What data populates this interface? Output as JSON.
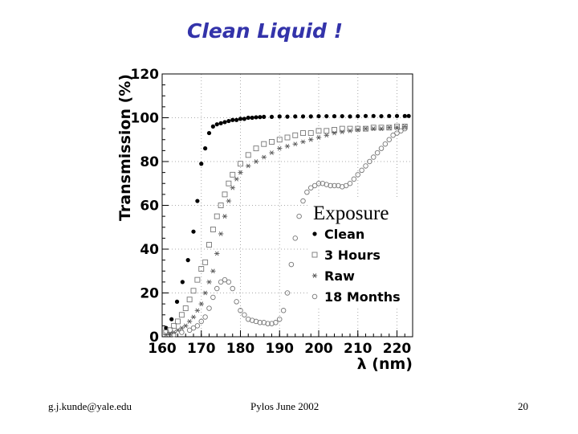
{
  "slide": {
    "title": "Clean Liquid !",
    "footer_left": "g.j.kunde@yale.edu",
    "footer_center": "Pylos June 2002",
    "footer_right": "20"
  },
  "chart_data": {
    "type": "scatter",
    "title": "",
    "xlabel": "λ (nm)",
    "ylabel": "Transmission (%)",
    "xlim": [
      160,
      224
    ],
    "ylim": [
      0,
      120
    ],
    "xticks": [
      160,
      170,
      180,
      190,
      200,
      210,
      220
    ],
    "yticks": [
      0,
      20,
      40,
      60,
      80,
      100,
      120
    ],
    "grid": "dotted",
    "legend_title": "Exposure",
    "legend_position": "right-middle",
    "series": [
      {
        "name": "Clean",
        "marker": "filled-circle",
        "x": [
          161,
          162.4,
          163.8,
          165.2,
          166.6,
          168,
          169,
          170,
          171,
          172,
          173,
          174,
          175,
          176,
          177,
          178,
          179,
          180,
          181,
          182,
          183,
          184,
          185,
          186,
          188,
          190,
          192,
          194,
          196,
          198,
          200,
          202,
          204,
          206,
          208,
          210,
          212,
          214,
          216,
          218,
          220,
          222,
          223
        ],
        "y": [
          4,
          8,
          16,
          25,
          35,
          48,
          62,
          79,
          86,
          93,
          96,
          97,
          97.5,
          98,
          98.5,
          99,
          99,
          99.5,
          99.5,
          100,
          100,
          100.2,
          100.3,
          100.4,
          100.4,
          100.6,
          100.5,
          100.6,
          100.6,
          100.6,
          100.7,
          100.7,
          100.7,
          100.7,
          100.6,
          100.7,
          100.8,
          100.8,
          100.7,
          100.8,
          100.8,
          100.8,
          100.8
        ]
      },
      {
        "name": "3 Hours",
        "marker": "open-square",
        "x": [
          161,
          162,
          163,
          164,
          165,
          166,
          167,
          168,
          169,
          170,
          171,
          172,
          173,
          174,
          175,
          176,
          177,
          178,
          180,
          182,
          184,
          186,
          188,
          190,
          192,
          194,
          196,
          198,
          200,
          202,
          204,
          206,
          208,
          210,
          212,
          214,
          216,
          218,
          220,
          222
        ],
        "y": [
          2,
          3,
          5,
          7,
          10,
          13,
          17,
          21,
          26,
          31,
          34,
          42,
          49,
          55,
          60,
          65,
          70,
          74,
          79,
          83,
          86,
          88,
          89,
          90,
          91,
          92,
          93,
          93,
          94,
          94,
          94.5,
          95,
          95,
          95,
          95,
          95.5,
          95.5,
          95.5,
          96,
          96
        ]
      },
      {
        "name": "Raw",
        "marker": "asterisk",
        "x": [
          161,
          162,
          163,
          164,
          165,
          166,
          167,
          168,
          169,
          170,
          171,
          172,
          173,
          174,
          175,
          176,
          177,
          178,
          179,
          180,
          182,
          184,
          186,
          188,
          190,
          192,
          194,
          196,
          198,
          200,
          202,
          204,
          206,
          208,
          210,
          212,
          214,
          216,
          218,
          220,
          222
        ],
        "y": [
          1,
          1.5,
          2,
          3,
          4,
          5,
          7,
          9,
          12,
          15,
          20,
          25,
          30,
          38,
          47,
          55,
          62,
          68,
          72,
          75,
          78,
          80,
          82,
          84,
          86,
          87,
          88,
          89,
          90,
          91,
          92,
          93,
          93.5,
          94,
          94.5,
          95,
          95,
          95,
          95.5,
          95.5,
          96
        ]
      },
      {
        "name": "18 Months",
        "marker": "open-circle",
        "x": [
          163,
          165,
          167,
          168,
          169,
          170,
          171,
          172,
          173,
          174,
          175,
          176,
          177,
          178,
          179,
          180,
          181,
          182,
          183,
          184,
          185,
          186,
          187,
          188,
          189,
          190,
          191,
          192,
          193,
          194,
          195,
          196,
          197,
          198,
          199,
          200,
          201,
          202,
          203,
          204,
          205,
          206,
          207,
          208,
          209,
          210,
          211,
          212,
          213,
          214,
          215,
          216,
          217,
          218,
          219,
          220,
          221,
          222
        ],
        "y": [
          1,
          2,
          3,
          4,
          5,
          7,
          9,
          13,
          18,
          22,
          25,
          26,
          25,
          22,
          16,
          12,
          10,
          8,
          7.5,
          7,
          6.5,
          6.5,
          6,
          6,
          6.5,
          8,
          12,
          20,
          33,
          45,
          55,
          62,
          66,
          68,
          69,
          70,
          70,
          69.5,
          69,
          69,
          69,
          68.5,
          69,
          70,
          72,
          74,
          76,
          78,
          80,
          82,
          84,
          86,
          88,
          90,
          92,
          93,
          94,
          95
        ]
      }
    ]
  }
}
